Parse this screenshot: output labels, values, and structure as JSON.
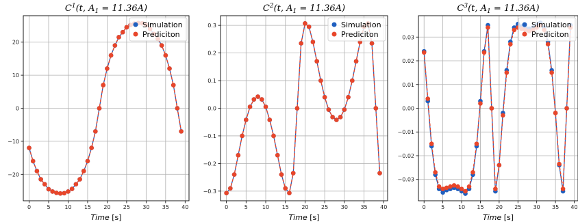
{
  "colors": {
    "simulation": "#1f5fbf",
    "prediction": "#e8462a",
    "grid": "#b0b0b0",
    "axis": "#000000"
  },
  "chart_data": [
    {
      "type": "line",
      "title": "C^{1}(t, A_{1} = 11.36A)",
      "title_parts": {
        "base": "C",
        "sup": "1",
        "rest": "(t, A",
        "sub": "1",
        "tail": " = 11.36A)"
      },
      "xlabel": "Time [s]",
      "xlabel_parts": {
        "italic": "Time",
        "rest": " [s]"
      },
      "xlim": [
        -1.5,
        41
      ],
      "ylim": [
        -28,
        28
      ],
      "xticks": [
        0,
        5,
        10,
        15,
        20,
        25,
        30,
        35,
        40
      ],
      "yticks": [
        -20,
        -10,
        0,
        10,
        20
      ],
      "ytick_labels": [
        "−20",
        "−10",
        "0",
        "10",
        "20"
      ],
      "legend": {
        "position": "top-right",
        "entries": [
          "Simulation",
          "Prediciton"
        ]
      },
      "x": [
        0,
        1,
        2,
        3,
        4,
        5,
        6,
        7,
        8,
        9,
        10,
        11,
        12,
        13,
        14,
        15,
        16,
        17,
        18,
        19,
        20,
        21,
        22,
        23,
        24,
        25,
        26,
        27,
        28,
        29,
        30,
        31,
        32,
        33,
        34,
        35,
        36,
        37,
        38,
        39
      ],
      "series": [
        {
          "name": "Simulation",
          "values": [
            -12,
            -16,
            -19,
            -21.5,
            -23,
            -24.5,
            -25.2,
            -25.6,
            -25.8,
            -25.7,
            -25.2,
            -24.4,
            -23,
            -21.5,
            -19,
            -16,
            -12,
            -7,
            0,
            7,
            12,
            16,
            19,
            21.5,
            23,
            24.5,
            25.2,
            25.6,
            25.8,
            25.7,
            25.2,
            24,
            22.5,
            21,
            19,
            16,
            12,
            7,
            0,
            -7
          ]
        },
        {
          "name": "Prediciton",
          "values": [
            -12,
            -16,
            -19,
            -21.5,
            -23,
            -24.5,
            -25.2,
            -25.6,
            -25.8,
            -25.7,
            -25.2,
            -24.4,
            -23,
            -21.5,
            -19,
            -16,
            -12,
            -7,
            0,
            7,
            12,
            16,
            19,
            21.5,
            23,
            24.5,
            25.2,
            25.6,
            25.8,
            25.7,
            25.2,
            24,
            22.5,
            21,
            19,
            16,
            12,
            7,
            0,
            -7
          ]
        }
      ]
    },
    {
      "type": "line",
      "title": "C^{2}(t, A_{1} = 11.36A)",
      "title_parts": {
        "base": "C",
        "sup": "2",
        "rest": "(t, A",
        "sub": "1",
        "tail": " = 11.36A)"
      },
      "xlabel": "Time [s]",
      "xlabel_parts": {
        "italic": "Time",
        "rest": " [s]"
      },
      "xlim": [
        -1.5,
        41
      ],
      "ylim": [
        -0.335,
        0.335
      ],
      "xticks": [
        0,
        5,
        10,
        15,
        20,
        25,
        30,
        35,
        40
      ],
      "yticks": [
        -0.3,
        -0.2,
        -0.1,
        0.0,
        0.1,
        0.2,
        0.3
      ],
      "ytick_labels": [
        "−0.3",
        "−0.2",
        "−0.1",
        "0.0",
        "0.1",
        "0.2",
        "0.3"
      ],
      "legend": {
        "position": "top-right",
        "entries": [
          "Simulation",
          "Prediciton"
        ]
      },
      "x": [
        0,
        1,
        2,
        3,
        4,
        5,
        6,
        7,
        8,
        9,
        10,
        11,
        12,
        13,
        14,
        15,
        16,
        17,
        18,
        19,
        20,
        21,
        22,
        23,
        24,
        25,
        26,
        27,
        28,
        29,
        30,
        31,
        32,
        33,
        34,
        35,
        36,
        37,
        38,
        39
      ],
      "series": [
        {
          "name": "Simulation",
          "values": [
            -0.307,
            -0.29,
            -0.24,
            -0.17,
            -0.1,
            -0.042,
            0.005,
            0.032,
            0.042,
            0.032,
            0.005,
            -0.042,
            -0.1,
            -0.17,
            -0.24,
            -0.29,
            -0.307,
            -0.235,
            0.0,
            0.235,
            0.307,
            0.295,
            0.24,
            0.17,
            0.1,
            0.04,
            -0.005,
            -0.032,
            -0.042,
            -0.032,
            -0.005,
            0.04,
            0.1,
            0.17,
            0.24,
            0.295,
            0.307,
            0.235,
            0.0,
            -0.235
          ]
        },
        {
          "name": "Prediciton",
          "values": [
            -0.307,
            -0.29,
            -0.24,
            -0.17,
            -0.1,
            -0.042,
            0.005,
            0.032,
            0.042,
            0.032,
            0.005,
            -0.042,
            -0.1,
            -0.17,
            -0.24,
            -0.29,
            -0.307,
            -0.235,
            0.0,
            0.235,
            0.307,
            0.295,
            0.24,
            0.17,
            0.1,
            0.04,
            -0.005,
            -0.032,
            -0.042,
            -0.032,
            -0.005,
            0.04,
            0.1,
            0.17,
            0.24,
            0.295,
            0.307,
            0.235,
            0.0,
            -0.235
          ]
        }
      ]
    },
    {
      "type": "line",
      "title": "C^{3}(t, A_{1} = 11.36A)",
      "title_parts": {
        "base": "C",
        "sup": "3",
        "rest": "(t, A",
        "sub": "1",
        "tail": " = 11.36A)"
      },
      "xlabel": "Time [s]",
      "xlabel_parts": {
        "italic": "Time",
        "rest": " [s]"
      },
      "xlim": [
        -1.5,
        41
      ],
      "ylim": [
        -0.039,
        0.039
      ],
      "xticks": [
        0,
        5,
        10,
        15,
        20,
        25,
        30,
        35,
        40
      ],
      "yticks": [
        -0.03,
        -0.02,
        -0.01,
        0.0,
        0.01,
        0.02,
        0.03
      ],
      "ytick_labels": [
        "−0.03",
        "−0.02",
        "−0.01",
        "0.00",
        "0.01",
        "0.02",
        "0.03"
      ],
      "legend": {
        "position": "top-right",
        "entries": [
          "Simulation",
          "Prediciton"
        ]
      },
      "x": [
        0,
        1,
        2,
        3,
        4,
        5,
        6,
        7,
        8,
        9,
        10,
        11,
        12,
        13,
        14,
        15,
        16,
        17,
        18,
        19,
        20,
        21,
        22,
        23,
        24,
        25,
        26,
        27,
        28,
        29,
        30,
        31,
        32,
        33,
        34,
        35,
        36,
        37,
        38,
        39
      ],
      "series": [
        {
          "name": "Simulation",
          "values": [
            0.024,
            0.003,
            -0.016,
            -0.028,
            -0.034,
            -0.0355,
            -0.0345,
            -0.034,
            -0.0335,
            -0.034,
            -0.035,
            -0.036,
            -0.034,
            -0.028,
            -0.016,
            0.003,
            0.024,
            0.035,
            0.0,
            -0.035,
            -0.024,
            -0.002,
            0.016,
            0.028,
            0.034,
            0.0355,
            0.0345,
            0.034,
            0.0335,
            0.034,
            0.035,
            0.036,
            0.034,
            0.028,
            0.016,
            -0.002,
            -0.024,
            -0.035,
            0.0,
            0.035
          ]
        },
        {
          "name": "Prediciton",
          "values": [
            0.0235,
            0.004,
            -0.015,
            -0.027,
            -0.033,
            -0.034,
            -0.0335,
            -0.033,
            -0.0325,
            -0.033,
            -0.034,
            -0.035,
            -0.033,
            -0.027,
            -0.015,
            0.002,
            0.0235,
            0.034,
            0.0,
            -0.034,
            -0.024,
            -0.003,
            0.015,
            0.027,
            0.033,
            0.034,
            0.0335,
            0.033,
            0.0325,
            0.033,
            0.034,
            0.035,
            0.033,
            0.027,
            0.015,
            -0.002,
            -0.0235,
            -0.034,
            0.0,
            0.034
          ]
        }
      ]
    }
  ]
}
